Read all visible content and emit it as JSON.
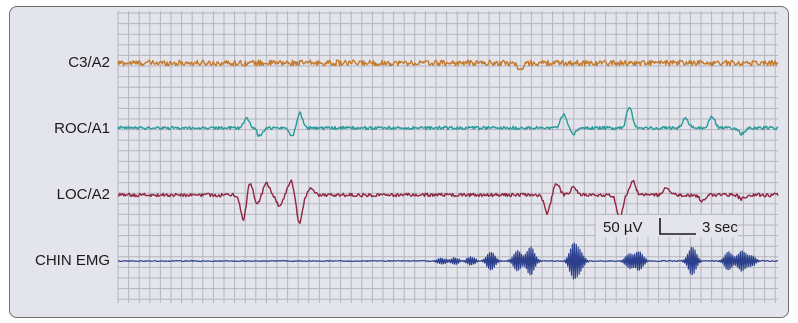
{
  "chart_data": {
    "type": "line",
    "title": "",
    "xlabel": "",
    "ylabel": "",
    "grid": true,
    "background_color": "#e4e4ec",
    "grid_color": "#b5b5bd",
    "scale_bar": {
      "amplitude_label": "50 µV",
      "time_label": "3 sec"
    },
    "series": [
      {
        "name": "C3/A2",
        "color": "#c47a2c",
        "description_points": [
          [
            0,
            0
          ],
          [
            0.1,
            0.2
          ],
          [
            0.2,
            -0.1
          ],
          [
            0.3,
            0.15
          ],
          [
            0.4,
            -0.2
          ],
          [
            0.5,
            0.1
          ],
          [
            0.6,
            -0.15
          ],
          [
            0.7,
            0.2
          ],
          [
            0.8,
            -0.1
          ],
          [
            0.9,
            0.15
          ],
          [
            1,
            0
          ]
        ],
        "events": [
          {
            "t": 0.61,
            "amp": -7
          }
        ],
        "noise_amp": 2.8
      },
      {
        "name": "ROC/A1",
        "color": "#2a9a9a",
        "noise_amp": 1.6,
        "events": [
          {
            "t": 0.195,
            "amp": 10
          },
          {
            "t": 0.215,
            "amp": -8
          },
          {
            "t": 0.265,
            "amp": -9
          },
          {
            "t": 0.275,
            "amp": 16
          },
          {
            "t": 0.675,
            "amp": 13
          },
          {
            "t": 0.69,
            "amp": -6
          },
          {
            "t": 0.775,
            "amp": 22
          },
          {
            "t": 0.86,
            "amp": 10
          },
          {
            "t": 0.9,
            "amp": 12
          },
          {
            "t": 0.945,
            "amp": -6
          }
        ]
      },
      {
        "name": "LOC/A2",
        "color": "#8e2640",
        "noise_amp": 1.7,
        "events": [
          {
            "t": 0.19,
            "amp": -25
          },
          {
            "t": 0.2,
            "amp": 14
          },
          {
            "t": 0.21,
            "amp": -10
          },
          {
            "t": 0.225,
            "amp": 12
          },
          {
            "t": 0.245,
            "amp": -12
          },
          {
            "t": 0.262,
            "amp": 14
          },
          {
            "t": 0.275,
            "amp": -28
          },
          {
            "t": 0.292,
            "amp": 6
          },
          {
            "t": 0.65,
            "amp": -18
          },
          {
            "t": 0.665,
            "amp": 12
          },
          {
            "t": 0.69,
            "amp": 8
          },
          {
            "t": 0.76,
            "amp": -24
          },
          {
            "t": 0.78,
            "amp": 14
          },
          {
            "t": 0.83,
            "amp": 8
          },
          {
            "t": 0.885,
            "amp": -6
          },
          {
            "t": 0.945,
            "amp": -4
          }
        ]
      },
      {
        "name": "CHIN EMG",
        "color": "#2b3f8c",
        "noise_amp": 0.5,
        "bursts": [
          {
            "t": 0.49,
            "amp": 3
          },
          {
            "t": 0.51,
            "amp": 3
          },
          {
            "t": 0.535,
            "amp": 4
          },
          {
            "t": 0.565,
            "amp": 9
          },
          {
            "t": 0.605,
            "amp": 10
          },
          {
            "t": 0.625,
            "amp": 14
          },
          {
            "t": 0.69,
            "amp": 16
          },
          {
            "t": 0.7,
            "amp": 8
          },
          {
            "t": 0.775,
            "amp": 7
          },
          {
            "t": 0.79,
            "amp": 9
          },
          {
            "t": 0.87,
            "amp": 14
          },
          {
            "t": 0.925,
            "amp": 9
          },
          {
            "t": 0.945,
            "amp": 10
          },
          {
            "t": 0.96,
            "amp": 5
          }
        ]
      }
    ]
  }
}
